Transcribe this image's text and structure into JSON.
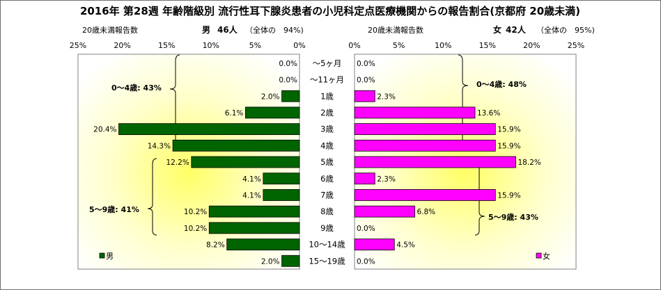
{
  "title": "2016年 第28週 年齢階級別 流行性耳下腺炎患者の小児科定点医療機関からの報告割合(京都府 20歳未満)",
  "chart_data": {
    "type": "bar",
    "title": "2016年 第28週 年齢階級別 流行性耳下腺炎患者の小児科定点医療機関からの報告割合(京都府 20歳未満)",
    "categories": [
      "～5ヶ月",
      "～11ヶ月",
      "1歳",
      "2歳",
      "3歳",
      "4歳",
      "5歳",
      "6歳",
      "7歳",
      "8歳",
      "9歳",
      "10～14歳",
      "15～19歳"
    ],
    "series": [
      {
        "name": "男",
        "color": "#006400",
        "values": [
          0.0,
          0.0,
          2.0,
          6.1,
          20.4,
          14.3,
          12.2,
          4.1,
          4.1,
          10.2,
          10.2,
          8.2,
          2.0
        ],
        "labels": [
          "0.0%",
          "0.0%",
          "2.0%",
          "6.1%",
          "20.4%",
          "14.3%",
          "12.2%",
          "4.1%",
          "4.1%",
          "10.2%",
          "10.2%",
          "8.2%",
          "2.0%"
        ]
      },
      {
        "name": "女",
        "color": "#ff00ff",
        "values": [
          0.0,
          0.0,
          2.3,
          13.6,
          15.9,
          15.9,
          18.2,
          2.3,
          15.9,
          6.8,
          0.0,
          4.5,
          0.0
        ],
        "labels": [
          "0.0%",
          "0.0%",
          "2.3%",
          "13.6%",
          "15.9%",
          "15.9%",
          "18.2%",
          "2.3%",
          "15.9%",
          "6.8%",
          "0.0%",
          "4.5%",
          "0.0%"
        ]
      }
    ],
    "xlim": [
      0,
      25
    ],
    "ticks": [
      "0%",
      "5%",
      "10%",
      "15%",
      "20%",
      "25%"
    ],
    "header_left": {
      "label": "20歳未満報告数",
      "sex": "男",
      "count": "46人",
      "share": "（全体の　94%)"
    },
    "header_right": {
      "label": "20歳未満報告数",
      "sex": "女",
      "count": "42人",
      "share": "（全体の　95%)"
    },
    "annotations": {
      "male_0_4": "0～4歳: 43%",
      "male_5_9": "5～9歳: 41%",
      "female_0_4": "0～4歳: 48%",
      "female_5_9": "5～9歳: 43%"
    },
    "legend_left": "男",
    "legend_right": "女",
    "grid": false
  }
}
